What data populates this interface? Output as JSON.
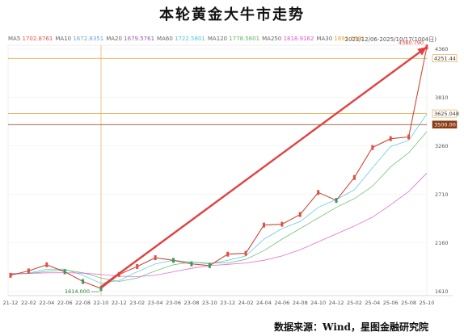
{
  "title": "本轮黄金大牛市走势",
  "ma_legend": [
    {
      "name": "MA5",
      "value": "1702.8761",
      "color": "#e8504a"
    },
    {
      "name": "MA10",
      "value": "1672.8351",
      "color": "#6aa3d8"
    },
    {
      "name": "MA20",
      "value": "1679.5761",
      "color": "#9b59b6"
    },
    {
      "name": "MA60",
      "value": "1722.5801",
      "color": "#4ec3e0"
    },
    {
      "name": "MA120",
      "value": "1778.5601",
      "color": "#5cb85c"
    },
    {
      "name": "MA250",
      "value": "1818.9162",
      "color": "#e056c8"
    },
    {
      "name": "MA30",
      "value": "1691.7581",
      "color": "#e0a030"
    }
  ],
  "date_range": "2021/12/06-2025/10/17(1004日)",
  "source": "数据来源：Wind，星图金融研究院",
  "chart_data": {
    "type": "line",
    "x_tick_labels": [
      "21-12",
      "22-02",
      "22-04",
      "22-06",
      "22-08",
      "22-10",
      "22-12",
      "23-02",
      "23-04",
      "23-06",
      "23-08",
      "23-10",
      "23-12",
      "24-02",
      "24-04",
      "24-06",
      "24-08",
      "24-10",
      "24-12",
      "25-02",
      "25-04",
      "25-06",
      "25-08",
      "25-10"
    ],
    "y_tick_labels": [
      "1610",
      "2160",
      "2710",
      "3260",
      "3810",
      "4360"
    ],
    "y_ticks": [
      1610,
      2160,
      2710,
      3260,
      3810,
      4360
    ],
    "ylim": [
      1560,
      4400
    ],
    "price_series": {
      "x": [
        "21-12",
        "22-02",
        "22-04",
        "22-06",
        "22-08",
        "22-10",
        "22-12",
        "23-02",
        "23-04",
        "23-06",
        "23-08",
        "23-10",
        "23-12",
        "24-02",
        "24-04",
        "24-06",
        "24-08",
        "24-10",
        "24-12",
        "25-02",
        "25-04",
        "25-06",
        "25-08",
        "25-10"
      ],
      "values": [
        1790,
        1840,
        1910,
        1830,
        1720,
        1640,
        1800,
        1890,
        1990,
        1960,
        1920,
        1900,
        2030,
        2040,
        2360,
        2370,
        2480,
        2730,
        2640,
        2900,
        3240,
        3340,
        3360,
        4380
      ]
    },
    "ma_series": [
      {
        "name": "MA60",
        "color": "#4ec3e0",
        "values": [
          1800,
          1815,
          1860,
          1860,
          1790,
          1700,
          1730,
          1830,
          1920,
          1960,
          1940,
          1920,
          1960,
          2010,
          2200,
          2320,
          2400,
          2560,
          2650,
          2760,
          3010,
          3250,
          3320,
          3620
        ]
      },
      {
        "name": "MA120",
        "color": "#5cb85c",
        "values": [
          1805,
          1810,
          1835,
          1850,
          1820,
          1760,
          1720,
          1760,
          1840,
          1910,
          1940,
          1930,
          1930,
          1970,
          2070,
          2200,
          2320,
          2440,
          2560,
          2660,
          2800,
          3020,
          3180,
          3420
        ]
      },
      {
        "name": "MA250",
        "color": "#e056c8",
        "values": [
          1810,
          1812,
          1818,
          1820,
          1815,
          1800,
          1780,
          1775,
          1790,
          1830,
          1870,
          1900,
          1915,
          1930,
          1960,
          2010,
          2080,
          2170,
          2260,
          2350,
          2450,
          2590,
          2740,
          2950
        ]
      }
    ],
    "price_levels": [
      {
        "label": "4251.44",
        "value": 4251.44,
        "color": "#e0a030",
        "style": "outline"
      },
      {
        "label": "3625.048",
        "value": 3625.048,
        "color": "#e0a030",
        "style": "outline"
      },
      {
        "label": "3500.00",
        "value": 3500.0,
        "color": "#8b3a12",
        "style": "filled"
      }
    ],
    "annotations": [
      {
        "label": "1614.000",
        "x": "22-10",
        "value": 1614,
        "color": "#2a7a2a"
      },
      {
        "label": "4380.790",
        "x": "25-10",
        "value": 4380.79,
        "color": "#e23b3b"
      }
    ],
    "trend_arrow": {
      "from": {
        "x": "22-10",
        "value": 1660
      },
      "to": {
        "x": "25-10",
        "value": 4380.79
      },
      "color": "#e24040"
    },
    "crosshair_x": "22-10",
    "grid": true
  }
}
